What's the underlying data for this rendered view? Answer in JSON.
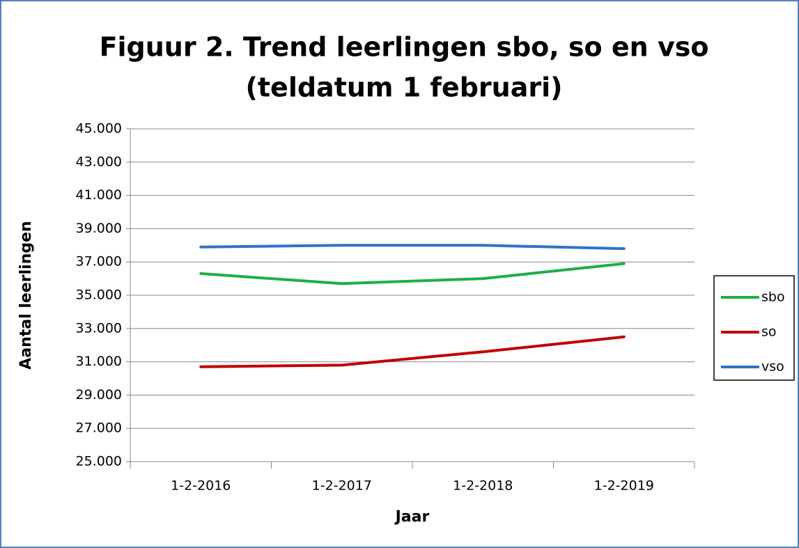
{
  "chart_data": {
    "type": "line",
    "title": [
      "Figuur 2. Trend leerlingen sbo, so en vso",
      "(teldatum 1 februari)"
    ],
    "x_label": "Jaar",
    "y_label": "Aantal leerlingen",
    "categories": [
      "1-2-2016",
      "1-2-2017",
      "1-2-2018",
      "1-2-2019"
    ],
    "series": [
      {
        "name": "sbo",
        "color": "#20ae4a",
        "values": [
          36300,
          35700,
          36000,
          36900
        ]
      },
      {
        "name": "so",
        "color": "#c00000",
        "values": [
          30700,
          30800,
          31600,
          32500
        ]
      },
      {
        "name": "vso",
        "color": "#2f74c6",
        "values": [
          37900,
          38000,
          38000,
          37800
        ]
      }
    ],
    "ylim": [
      25000,
      45000
    ],
    "yticks": [
      {
        "value": 25000,
        "label": "25.000"
      },
      {
        "value": 27000,
        "label": "27.000"
      },
      {
        "value": 29000,
        "label": "29.000"
      },
      {
        "value": 31000,
        "label": "31.000"
      },
      {
        "value": 33000,
        "label": "33.000"
      },
      {
        "value": 35000,
        "label": "35.000"
      },
      {
        "value": 37000,
        "label": "37.000"
      },
      {
        "value": 39000,
        "label": "39.000"
      },
      {
        "value": 41000,
        "label": "41.000"
      },
      {
        "value": 43000,
        "label": "43.000"
      },
      {
        "value": 45000,
        "label": "45.000"
      }
    ],
    "grid": true,
    "legend": "right"
  }
}
